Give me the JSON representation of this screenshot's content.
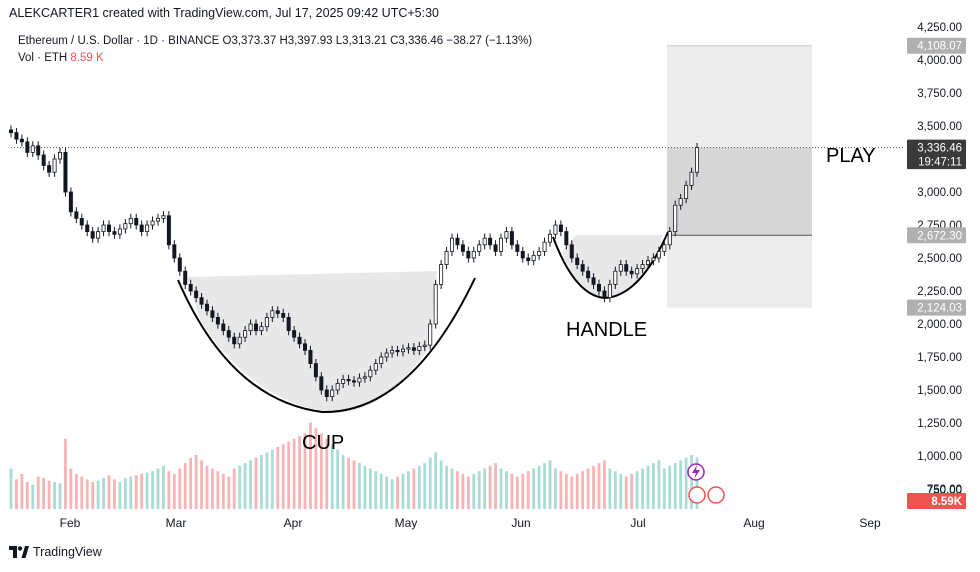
{
  "header": {
    "attribution": "ALEKCARTER1 created with TradingView.com, Jul 17, 2025 09:42 UTC+5:30"
  },
  "legend": {
    "symbol": "Ethereum / U.S. Dollar · 1D · BINANCE",
    "open": "O3,373.37",
    "high": "H3,397.93",
    "low": "L3,313.21",
    "close": "C3,336.46",
    "change": "−38.27 (−1.13%)",
    "volume_label": "Vol · ETH",
    "volume_value": "8.59 K"
  },
  "annotations": {
    "cup": "CUP",
    "handle": "HANDLE",
    "play": "PLAY"
  },
  "footer": {
    "brand": "TradingView"
  },
  "colors": {
    "up": "#26a69a",
    "down": "#ef5350",
    "candle": "#131722",
    "vol_up": "#a8dcd4",
    "vol_down": "#f7b4b4"
  },
  "chart_data": {
    "type": "candlestick",
    "title": "Ethereum / U.S. Dollar · 1D · BINANCE",
    "xlabel": "",
    "ylabel": "",
    "x_tick_labels": [
      "Feb",
      "Mar",
      "Apr",
      "May",
      "Jun",
      "Jul",
      "Aug",
      "Sep"
    ],
    "y_tick_labels": [
      "750.00",
      "1,000.00",
      "1,250.00",
      "1,500.00",
      "1,750.00",
      "2,000.00",
      "2,250.00",
      "2,500.00",
      "2,750.00",
      "3,000.00",
      "3,250.00",
      "3,500.00",
      "3,750.00",
      "4,000.00",
      "4,250.00"
    ],
    "y_ticks": [
      750,
      1000,
      1250,
      1500,
      1750,
      2000,
      2250,
      2500,
      2750,
      3000,
      3250,
      3500,
      3750,
      4000,
      4250
    ],
    "price_labels": [
      {
        "text": "4,108.07",
        "value": 4108.07,
        "style": "gray"
      },
      {
        "text": "3,336.46",
        "value": 3336.46,
        "style": "dark"
      },
      {
        "text": "19:47:11",
        "value": 3230,
        "style": "dark-sub"
      },
      {
        "text": "2,672.30",
        "value": 2672.3,
        "style": "gray"
      },
      {
        "text": "2,124.03",
        "value": 2124.03,
        "style": "gray"
      }
    ],
    "volume_badge": "8.59K",
    "volume_tick": "750.00",
    "closes": [
      3450,
      3400,
      3380,
      3300,
      3350,
      3280,
      3200,
      3150,
      3250,
      3300,
      3000,
      2850,
      2800,
      2750,
      2700,
      2650,
      2700,
      2750,
      2700,
      2680,
      2720,
      2760,
      2800,
      2750,
      2700,
      2750,
      2780,
      2800,
      2820,
      2600,
      2500,
      2400,
      2300,
      2250,
      2200,
      2150,
      2100,
      2050,
      2000,
      1950,
      1900,
      1850,
      1900,
      1950,
      2000,
      1950,
      1980,
      2050,
      2100,
      2080,
      2050,
      1950,
      1900,
      1850,
      1800,
      1700,
      1600,
      1500,
      1450,
      1500,
      1550,
      1580,
      1570,
      1560,
      1590,
      1600,
      1650,
      1700,
      1750,
      1780,
      1800,
      1790,
      1810,
      1820,
      1800,
      1830,
      1840,
      2000,
      2300,
      2450,
      2550,
      2650,
      2600,
      2550,
      2500,
      2550,
      2600,
      2650,
      2600,
      2550,
      2650,
      2700,
      2600,
      2550,
      2500,
      2480,
      2520,
      2550,
      2620,
      2680,
      2750,
      2700,
      2600,
      2500,
      2450,
      2400,
      2350,
      2300,
      2250,
      2200,
      2300,
      2400,
      2450,
      2400,
      2380,
      2420,
      2450,
      2480,
      2500,
      2550,
      2600,
      2700,
      2900,
      2950,
      3050,
      3150,
      3336
    ],
    "volumes": [
      300,
      220,
      260,
      200,
      180,
      240,
      230,
      210,
      200,
      190,
      520,
      300,
      260,
      240,
      220,
      200,
      210,
      230,
      250,
      220,
      200,
      230,
      240,
      250,
      260,
      270,
      280,
      300,
      320,
      280,
      260,
      300,
      340,
      380,
      400,
      360,
      320,
      300,
      280,
      260,
      240,
      300,
      320,
      340,
      360,
      380,
      400,
      420,
      440,
      460,
      480,
      500,
      520,
      540,
      560,
      640,
      600,
      560,
      520,
      480,
      440,
      400,
      380,
      360,
      340,
      320,
      300,
      280,
      260,
      240,
      220,
      240,
      260,
      280,
      300,
      320,
      340,
      380,
      420,
      360,
      320,
      300,
      280,
      260,
      240,
      260,
      280,
      300,
      320,
      340,
      300,
      280,
      260,
      240,
      260,
      280,
      300,
      320,
      340,
      360,
      300,
      280,
      260,
      240,
      260,
      280,
      300,
      320,
      340,
      360,
      300,
      280,
      260,
      240,
      260,
      280,
      300,
      320,
      340,
      360,
      300,
      320,
      340,
      360,
      380,
      400,
      380
    ],
    "series": [
      {
        "name": "ETHUSD",
        "close": 3336.46,
        "open": 3373.37,
        "high": 3397.93,
        "low": 3313.21,
        "change": -38.27
      }
    ],
    "ylim": [
      700,
      4300
    ],
    "current_price": 3336.46,
    "position": {
      "target": 4108.07,
      "entry": 2672.3,
      "stop": 2124.03,
      "label": "PLAY"
    },
    "patterns": [
      "CUP",
      "HANDLE"
    ],
    "grid": false,
    "legend_position": "top-left"
  }
}
